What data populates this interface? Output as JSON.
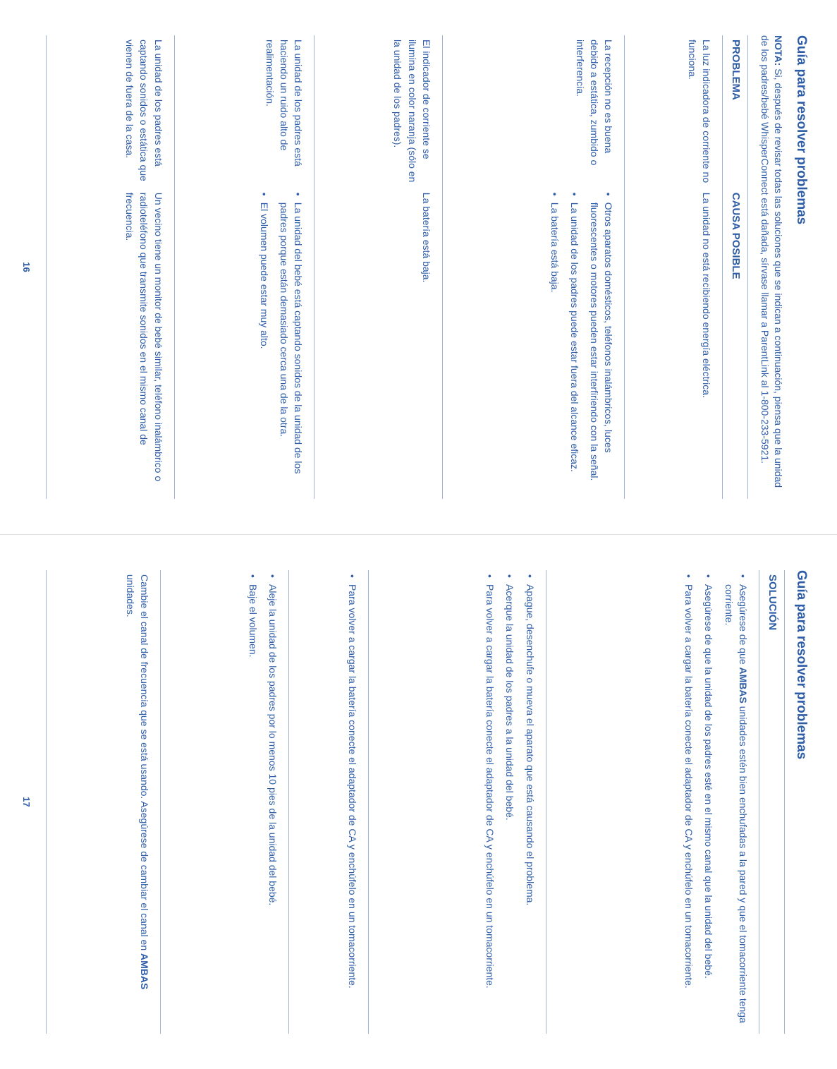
{
  "left": {
    "title": "Guía para resolver problemas",
    "note_prefix": "NOTA: ",
    "note_body": "Si, después de revisar todas las soluciones que se indican a continuación, piensa que la unidad de los padres/bebé WhisperConnect está dañada, sírvase llamar a ParentLink al 1-800-233-5921.",
    "headers": {
      "p": "PROBLEMA",
      "c": "CAUSA POSIBLE"
    },
    "rows": [
      {
        "problem": "La luz indicadora de corriente no funciona.",
        "cause_plain": "La unidad no está recibiendo energía eléctrica.",
        "cause_list": null
      },
      {
        "problem": "La recepción no es buena debido a estática, zumbido o interferencia.",
        "cause_plain": null,
        "cause_list": [
          "Otros aparatos domésticos, teléfonos inalámbricos, luces fluorescentes o motores pueden estar interfiriendo con la señal.",
          "La unidad de los padres puede estar fuera del alcance eficaz.",
          "La batería está baja."
        ]
      },
      {
        "problem": "El indicador de corriente se ilumina en color naranja (sólo en la unidad de los padres).",
        "cause_plain": "La batería está baja.",
        "cause_list": null
      },
      {
        "problem": "La unidad de los padres está haciendo un ruido alto de realimentación.",
        "cause_plain": null,
        "cause_list": [
          "La unidad del bebé está captando sonidos de la unidad de los padres porque están demasiado cerca una de la otra.",
          "El volumen puede estar muy alto."
        ]
      },
      {
        "problem": "La unidad de los padres está captando sonidos o estática que vienen de fuera de la casa.",
        "cause_plain": "Un vecino tiene un monitor de bebé similar, teléfono inalámbrico o radioteléfono que transmite sonidos en el mismo canal de frecuencia.",
        "cause_list": null
      }
    ],
    "footer": "16"
  },
  "right": {
    "title": "Guía para resolver problemas",
    "header": "SOLUCIÓN",
    "rows": [
      [
        {
          "pre": "Asegúrese de que ",
          "bold": "AMBAS",
          "post": " unidades estén bien enchufadas a la pared y que el tomacorriente tenga corriente."
        },
        {
          "pre": "Asegúrese de que la unidad de los padres esté en el mismo canal que la unidad del bebé.",
          "bold": null,
          "post": ""
        },
        {
          "pre": "Para volver a cargar la batería conecte el adaptador de CA y enchúfelo en un tomacorriente.",
          "bold": null,
          "post": ""
        }
      ],
      [
        {
          "pre": "Apague, desenchufe o mueva el aparato que está causando el problema.",
          "bold": null,
          "post": ""
        },
        {
          "pre": "Acerque la unidad de los padres a la unidad del bebé.",
          "bold": null,
          "post": ""
        },
        {
          "pre": "Para volver a cargar la batería conecte el adaptador de CA y enchúfelo en un tomacorriente.",
          "bold": null,
          "post": ""
        }
      ],
      [
        {
          "pre": "Para volver a cargar la batería conecte el adaptador de CA y enchúfelo en un tomacorriente.",
          "bold": null,
          "post": ""
        }
      ],
      [
        {
          "pre": "Aleje la unidad de los padres por lo menos 10 pies de la unidad del bebé.",
          "bold": null,
          "post": ""
        },
        {
          "pre": "Baje el volumen.",
          "bold": null,
          "post": ""
        }
      ],
      [
        {
          "plain_pre": "Cambie el canal de frecuencia que se está usando. Asegúrese de cambiar el canal en ",
          "bold": "AMBAS",
          "plain_post": " unidades."
        }
      ]
    ],
    "footer": "17"
  }
}
